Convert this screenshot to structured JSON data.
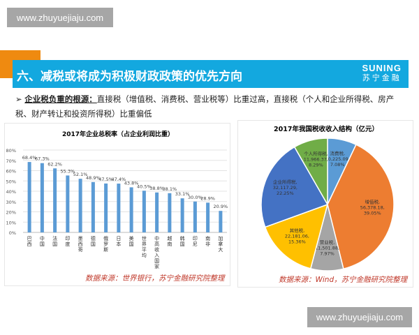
{
  "watermark": "www.zhuyuejiaju.com",
  "header": {
    "title": "六、减税或将成为积极财政政策的优先方向",
    "logo_en": "SUNING",
    "logo_cn": "苏宁金融"
  },
  "bullet": {
    "lead": "企业税负重的根源：",
    "text": "直接税（增值税、消费税、营业税等）比重过高，直接税（个人和企业所得税、房产税、财产转让和投资所得税）比重偏低"
  },
  "colors": {
    "bar": "#5b9bd5",
    "banner": "#13a8df",
    "orange": "#ef8a10",
    "source": "#c0392b"
  },
  "chart_data": [
    {
      "type": "bar",
      "title": "2017年企业总税率（占企业利润比重）",
      "categories": [
        "巴西",
        "中国",
        "法国",
        "印度",
        "墨西哥",
        "德国",
        "俄罗斯",
        "日本",
        "美国",
        "世界平均",
        "中高收入国家",
        "越南",
        "韩国",
        "印尼",
        "南非",
        "加拿大"
      ],
      "values": [
        68.4,
        67.3,
        62.2,
        55.3,
        52.1,
        48.9,
        47.5,
        47.4,
        43.8,
        40.5,
        38.8,
        38.1,
        33.1,
        30.0,
        28.9,
        20.9
      ],
      "data_labels": [
        "68.4%",
        "67.3%",
        "62.2%",
        "55.3%",
        "52.1%",
        "48.9%",
        "47.5%",
        "47.4%",
        "43.8%",
        "40.5%",
        "38.8%",
        "38.1%",
        "33.1%",
        "30.0%",
        "28.9%",
        "20.9%"
      ],
      "yticks": [
        "0%",
        "10%",
        "20%",
        "30%",
        "40%",
        "50%",
        "60%",
        "70%",
        "80%"
      ],
      "ylim": [
        0,
        80
      ],
      "grid": true,
      "source": "数据来源：世界银行，苏宁金融研究院整理"
    },
    {
      "type": "pie",
      "title": "2017年我国税收收入结构（亿元）",
      "slices": [
        {
          "name": "消费税",
          "value": 10225.09,
          "value_label": "10,225.09",
          "pct": "7.08%",
          "color": "#5b9bd5"
        },
        {
          "name": "增值税",
          "value": 56378.18,
          "value_label": "56,378.18",
          "pct": "39.05%",
          "color": "#ed7d31"
        },
        {
          "name": "营业税",
          "value": 11501.88,
          "value_label": "11,501.88",
          "pct": "7.97%",
          "color": "#a5a5a5"
        },
        {
          "name": "其他税",
          "value": 22181.06,
          "value_label": "22,181.06",
          "pct": "15.36%",
          "color": "#ffc000"
        },
        {
          "name": "企业所得税",
          "value": 32117.29,
          "value_label": "32,117.29",
          "pct": "22.25%",
          "color": "#4472c4"
        },
        {
          "name": "个人所得税",
          "value": 11966.37,
          "value_label": "11,966.37",
          "pct": "8.29%",
          "color": "#70ad47"
        }
      ],
      "source": "数据来源：Wind，苏宁金融研究院整理"
    }
  ]
}
